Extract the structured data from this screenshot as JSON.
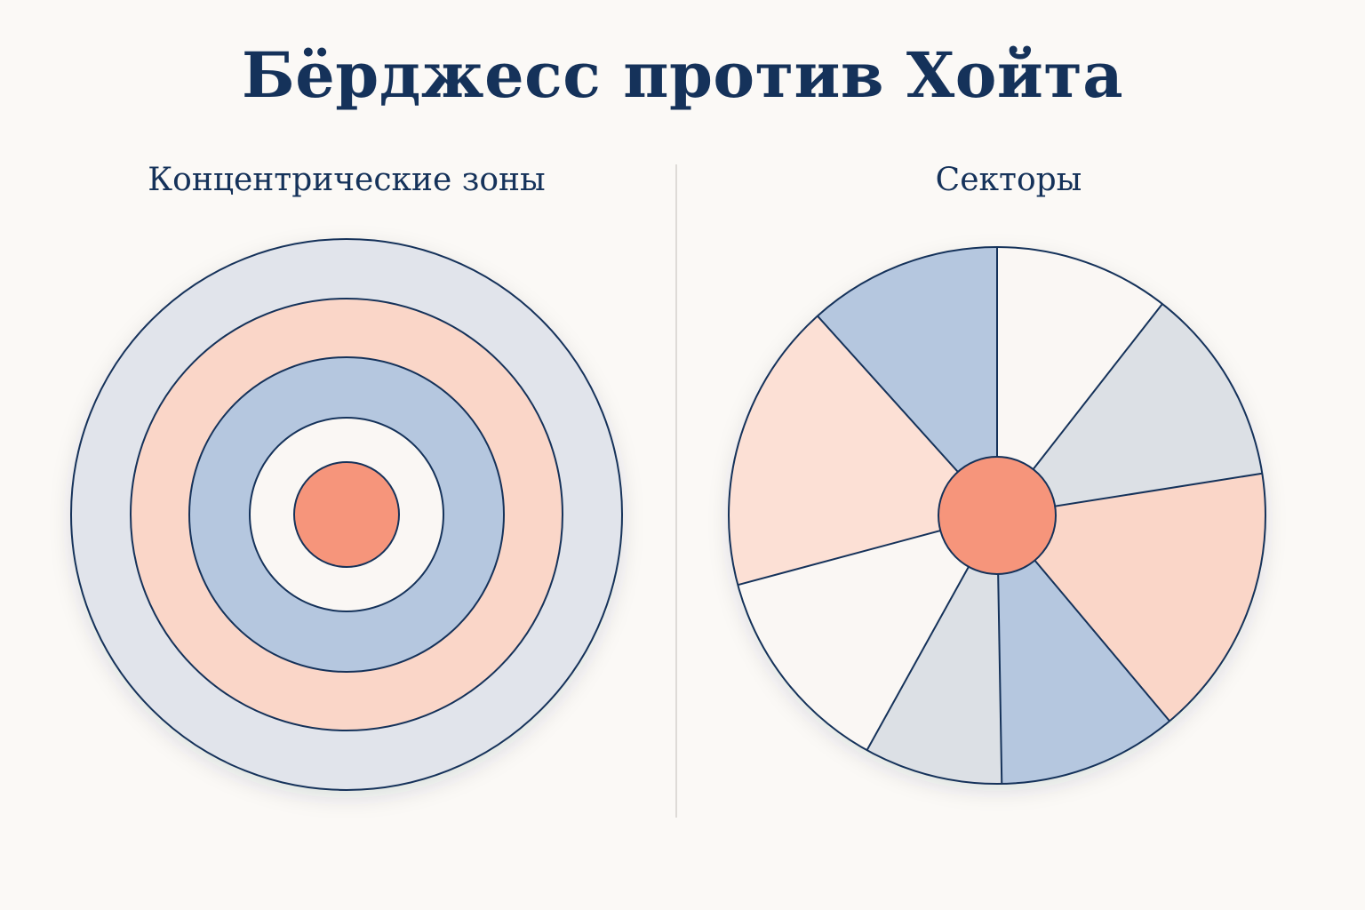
{
  "title": "Бёрджесс против Хойта",
  "panels": {
    "left": {
      "title": "Концентрические зоны"
    },
    "right": {
      "title": "Секторы"
    }
  },
  "colors": {
    "background": "#FBF9F6",
    "ink": "#15325A",
    "cbd": "#F6957B",
    "peach": "#FAD6C8",
    "light_blue_gray": "#E1E4EB",
    "blue": "#B5C7DF",
    "off_white": "#FAF7F4",
    "pale_gray": "#DCE0E5",
    "pale_peach": "#FCE0D5"
  },
  "concentric_zones": [
    {
      "zone": 5,
      "color": "#E1E4EB"
    },
    {
      "zone": 4,
      "color": "#FAD6C8"
    },
    {
      "zone": 3,
      "color": "#B5C7DF"
    },
    {
      "zone": 2,
      "color": "#FAF7F4"
    },
    {
      "zone": 1,
      "color": "#F6957B"
    }
  ],
  "sectors": [
    {
      "from_deg": 0,
      "to_deg": 38,
      "color": "#FAF7F4"
    },
    {
      "from_deg": 38,
      "to_deg": 81,
      "color": "#DCE0E5"
    },
    {
      "from_deg": 81,
      "to_deg": 140,
      "color": "#FAD6C8"
    },
    {
      "from_deg": 140,
      "to_deg": 179,
      "color": "#B5C7DF"
    },
    {
      "from_deg": 179,
      "to_deg": 209,
      "color": "#DCE0E5"
    },
    {
      "from_deg": 209,
      "to_deg": 255,
      "color": "#FAF7F4"
    },
    {
      "from_deg": 255,
      "to_deg": 318,
      "color": "#FCE0D5"
    },
    {
      "from_deg": 318,
      "to_deg": 360,
      "color": "#B5C7DF"
    }
  ]
}
